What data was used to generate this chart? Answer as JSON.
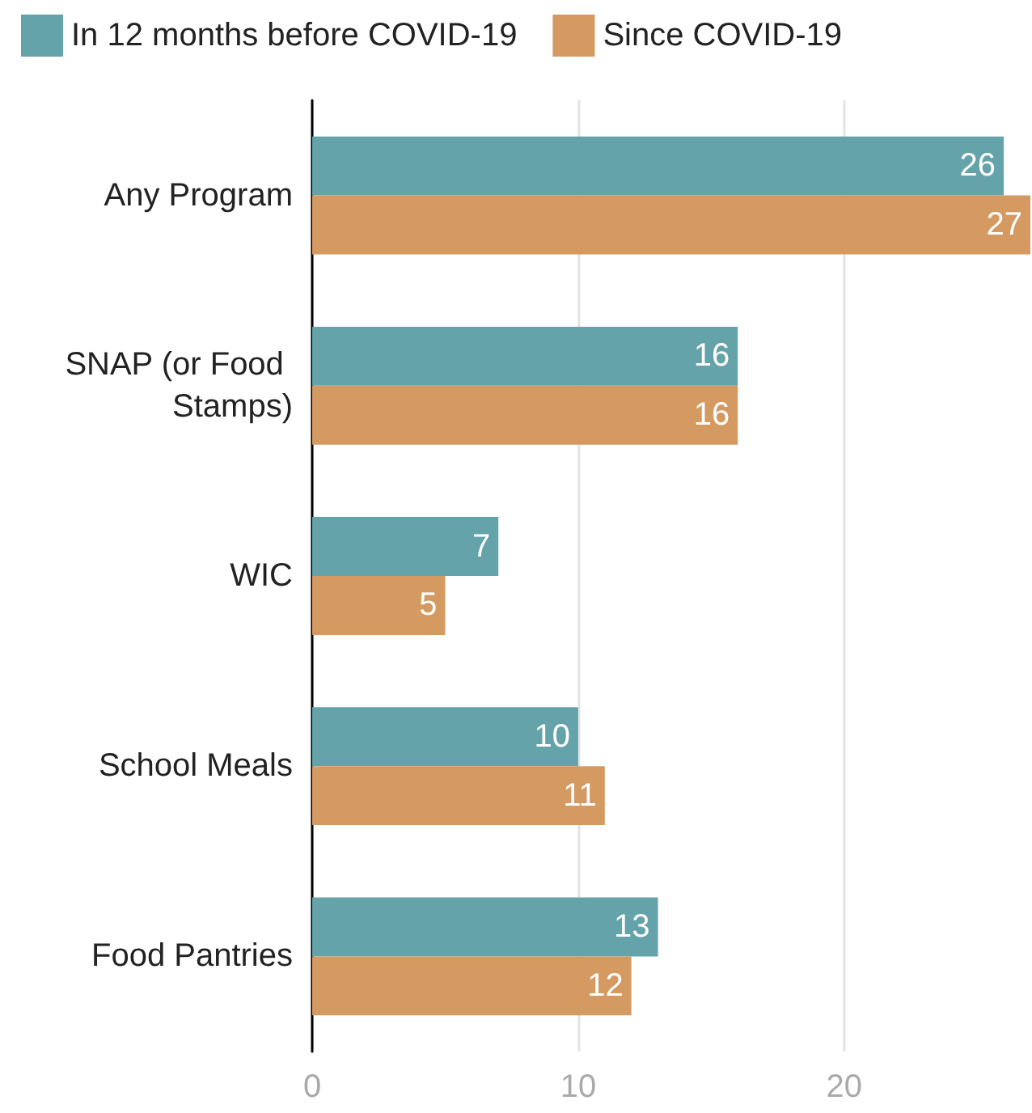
{
  "chart_data": {
    "type": "bar",
    "orientation": "horizontal",
    "categories": [
      "Any Program",
      "SNAP (or Food Stamps)",
      "WIC",
      "School Meals",
      "Food Pantries"
    ],
    "series": [
      {
        "name": "In 12 months before COVID-19",
        "color": "#65a3ab",
        "values": [
          26,
          16,
          7,
          10,
          13
        ]
      },
      {
        "name": "Since COVID-19",
        "color": "#d59a62",
        "values": [
          27,
          16,
          5,
          11,
          12
        ]
      }
    ],
    "xlim": [
      0,
      27
    ],
    "xticks": [
      0,
      10,
      20
    ],
    "grid": "x",
    "legend": "top left",
    "data_labels": true
  }
}
